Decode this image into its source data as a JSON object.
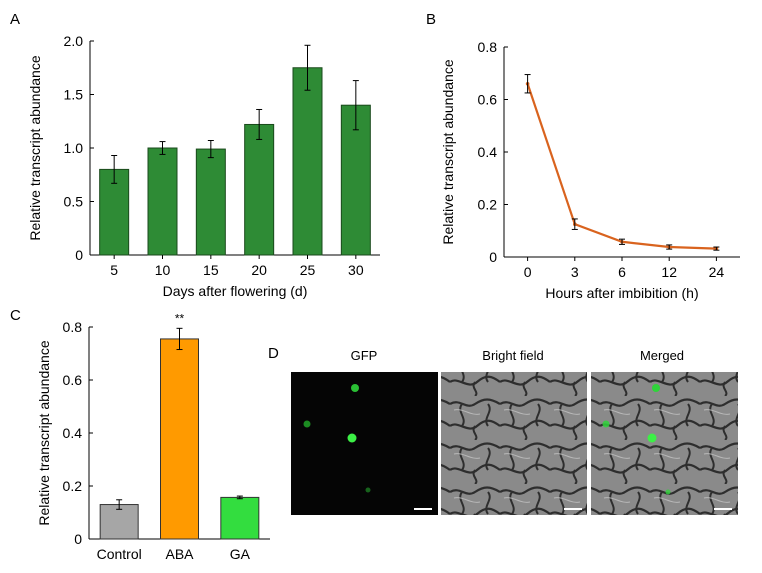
{
  "panels": {
    "A": {
      "letter": "A"
    },
    "B": {
      "letter": "B"
    },
    "C": {
      "letter": "C"
    },
    "D": {
      "letter": "D",
      "image_labels": [
        "GFP",
        "Bright field",
        "Merged"
      ],
      "colors": {
        "gfp_dot": "#2fd43a",
        "background": "#050505",
        "cell_wall": "#3a3a3a",
        "cell_body": "#8c8c8c"
      }
    }
  },
  "chart_data": [
    {
      "type": "bar",
      "panel": "A",
      "categories": [
        "5",
        "10",
        "15",
        "20",
        "25",
        "30"
      ],
      "values": [
        0.8,
        1.0,
        0.99,
        1.22,
        1.75,
        1.4
      ],
      "errors": [
        0.13,
        0.06,
        0.08,
        0.14,
        0.21,
        0.23
      ],
      "title": "",
      "xlabel": "Days after flowering (d)",
      "ylabel": "Relative transcript abundance",
      "ylim": [
        0,
        2.0
      ],
      "yticks": [
        "0",
        "0.5",
        "1.0",
        "1.5",
        "2.0"
      ],
      "colors": {
        "bar": "#2e8b35",
        "edge": "#1a4a1c"
      },
      "grid": false
    },
    {
      "type": "line",
      "panel": "B",
      "categories": [
        "0",
        "3",
        "6",
        "12",
        "24"
      ],
      "values": [
        0.66,
        0.125,
        0.058,
        0.038,
        0.032
      ],
      "errors": [
        0.035,
        0.02,
        0.01,
        0.008,
        0.006
      ],
      "title": "",
      "xlabel": "Hours after imbibition (h)",
      "ylabel": "Relative transcript abundance",
      "ylim": [
        0,
        0.8
      ],
      "yticks": [
        "0",
        "0.2",
        "0.4",
        "0.6",
        "0.8"
      ],
      "colors": {
        "line": "#d9631e"
      },
      "grid": false
    },
    {
      "type": "bar",
      "panel": "C",
      "categories": [
        "Control",
        "ABA",
        "GA"
      ],
      "values": [
        0.13,
        0.755,
        0.157
      ],
      "errors": [
        0.018,
        0.04,
        0.005
      ],
      "annotations": [
        "",
        "**",
        ""
      ],
      "title": "",
      "xlabel": "",
      "ylabel": "Relative transcript abundance",
      "ylim": [
        0,
        0.8
      ],
      "yticks": [
        "0",
        "0.2",
        "0.4",
        "0.6",
        "0.8"
      ],
      "colors": {
        "bars": [
          "#a6a6a6",
          "#ff9a00",
          "#33dd3f"
        ],
        "edge": "#333333"
      },
      "grid": false
    }
  ]
}
